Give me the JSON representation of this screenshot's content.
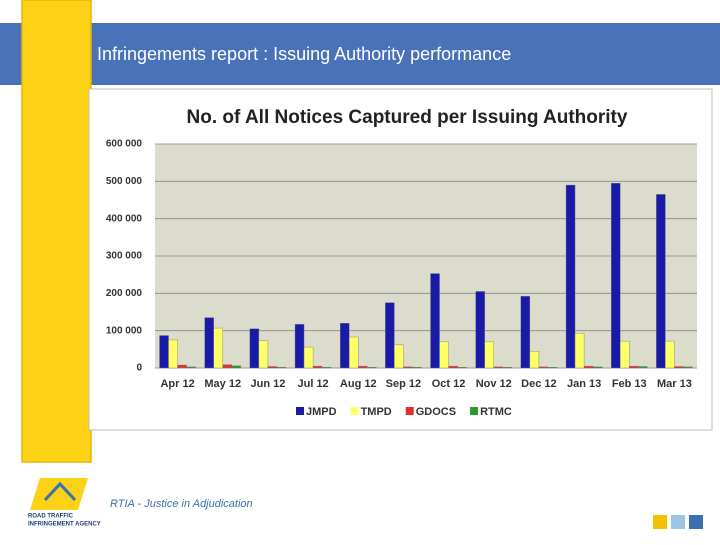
{
  "header": {
    "title": "Infringements report :  Issuing Authority performance"
  },
  "footer": {
    "text": "RTIA - Justice in Adjudication",
    "logo_line1": "ROAD TRAFFIC",
    "logo_line2": "INFRINGEMENT AGENCY"
  },
  "chart_data": {
    "type": "bar",
    "title": "No. of All Notices Captured per Issuing Authority",
    "categories": [
      "Apr 12",
      "May 12",
      "Jun 12",
      "Jul 12",
      "Aug 12",
      "Sep 12",
      "Oct 12",
      "Nov 12",
      "Dec 12",
      "Jan 13",
      "Feb 13",
      "Mar 13"
    ],
    "series": [
      {
        "name": "JMPD",
        "color": "#1a1aa8",
        "values": [
          87000,
          135000,
          105000,
          117000,
          120000,
          175000,
          253000,
          205000,
          192000,
          490000,
          495000,
          465000
        ]
      },
      {
        "name": "TMPD",
        "color": "#ffff66",
        "values": [
          75000,
          107000,
          73000,
          56000,
          83000,
          62000,
          70000,
          70000,
          45000,
          93000,
          72000,
          72000
        ]
      },
      {
        "name": "GDOCS",
        "color": "#e03030",
        "values": [
          8000,
          9000,
          4000,
          5000,
          5000,
          3000,
          5000,
          3000,
          3000,
          5000,
          5000,
          4000
        ]
      },
      {
        "name": "RTMC",
        "color": "#2a9a2a",
        "values": [
          3000,
          6000,
          2000,
          2000,
          2000,
          2000,
          2000,
          2000,
          2000,
          3000,
          4000,
          3000
        ]
      }
    ],
    "ylim": [
      0,
      600000
    ],
    "yticks": [
      0,
      {
        "value": 100000,
        "label": "100 000"
      },
      {
        "value": 200000,
        "label": "200 000"
      },
      {
        "value": 300000,
        "label": "300 000"
      },
      {
        "value": 400000,
        "label": "400 000"
      },
      {
        "value": 500000,
        "label": "500 000"
      },
      {
        "value": 600000,
        "label": "600 000"
      }
    ],
    "grid": true,
    "legend": "bottom"
  }
}
